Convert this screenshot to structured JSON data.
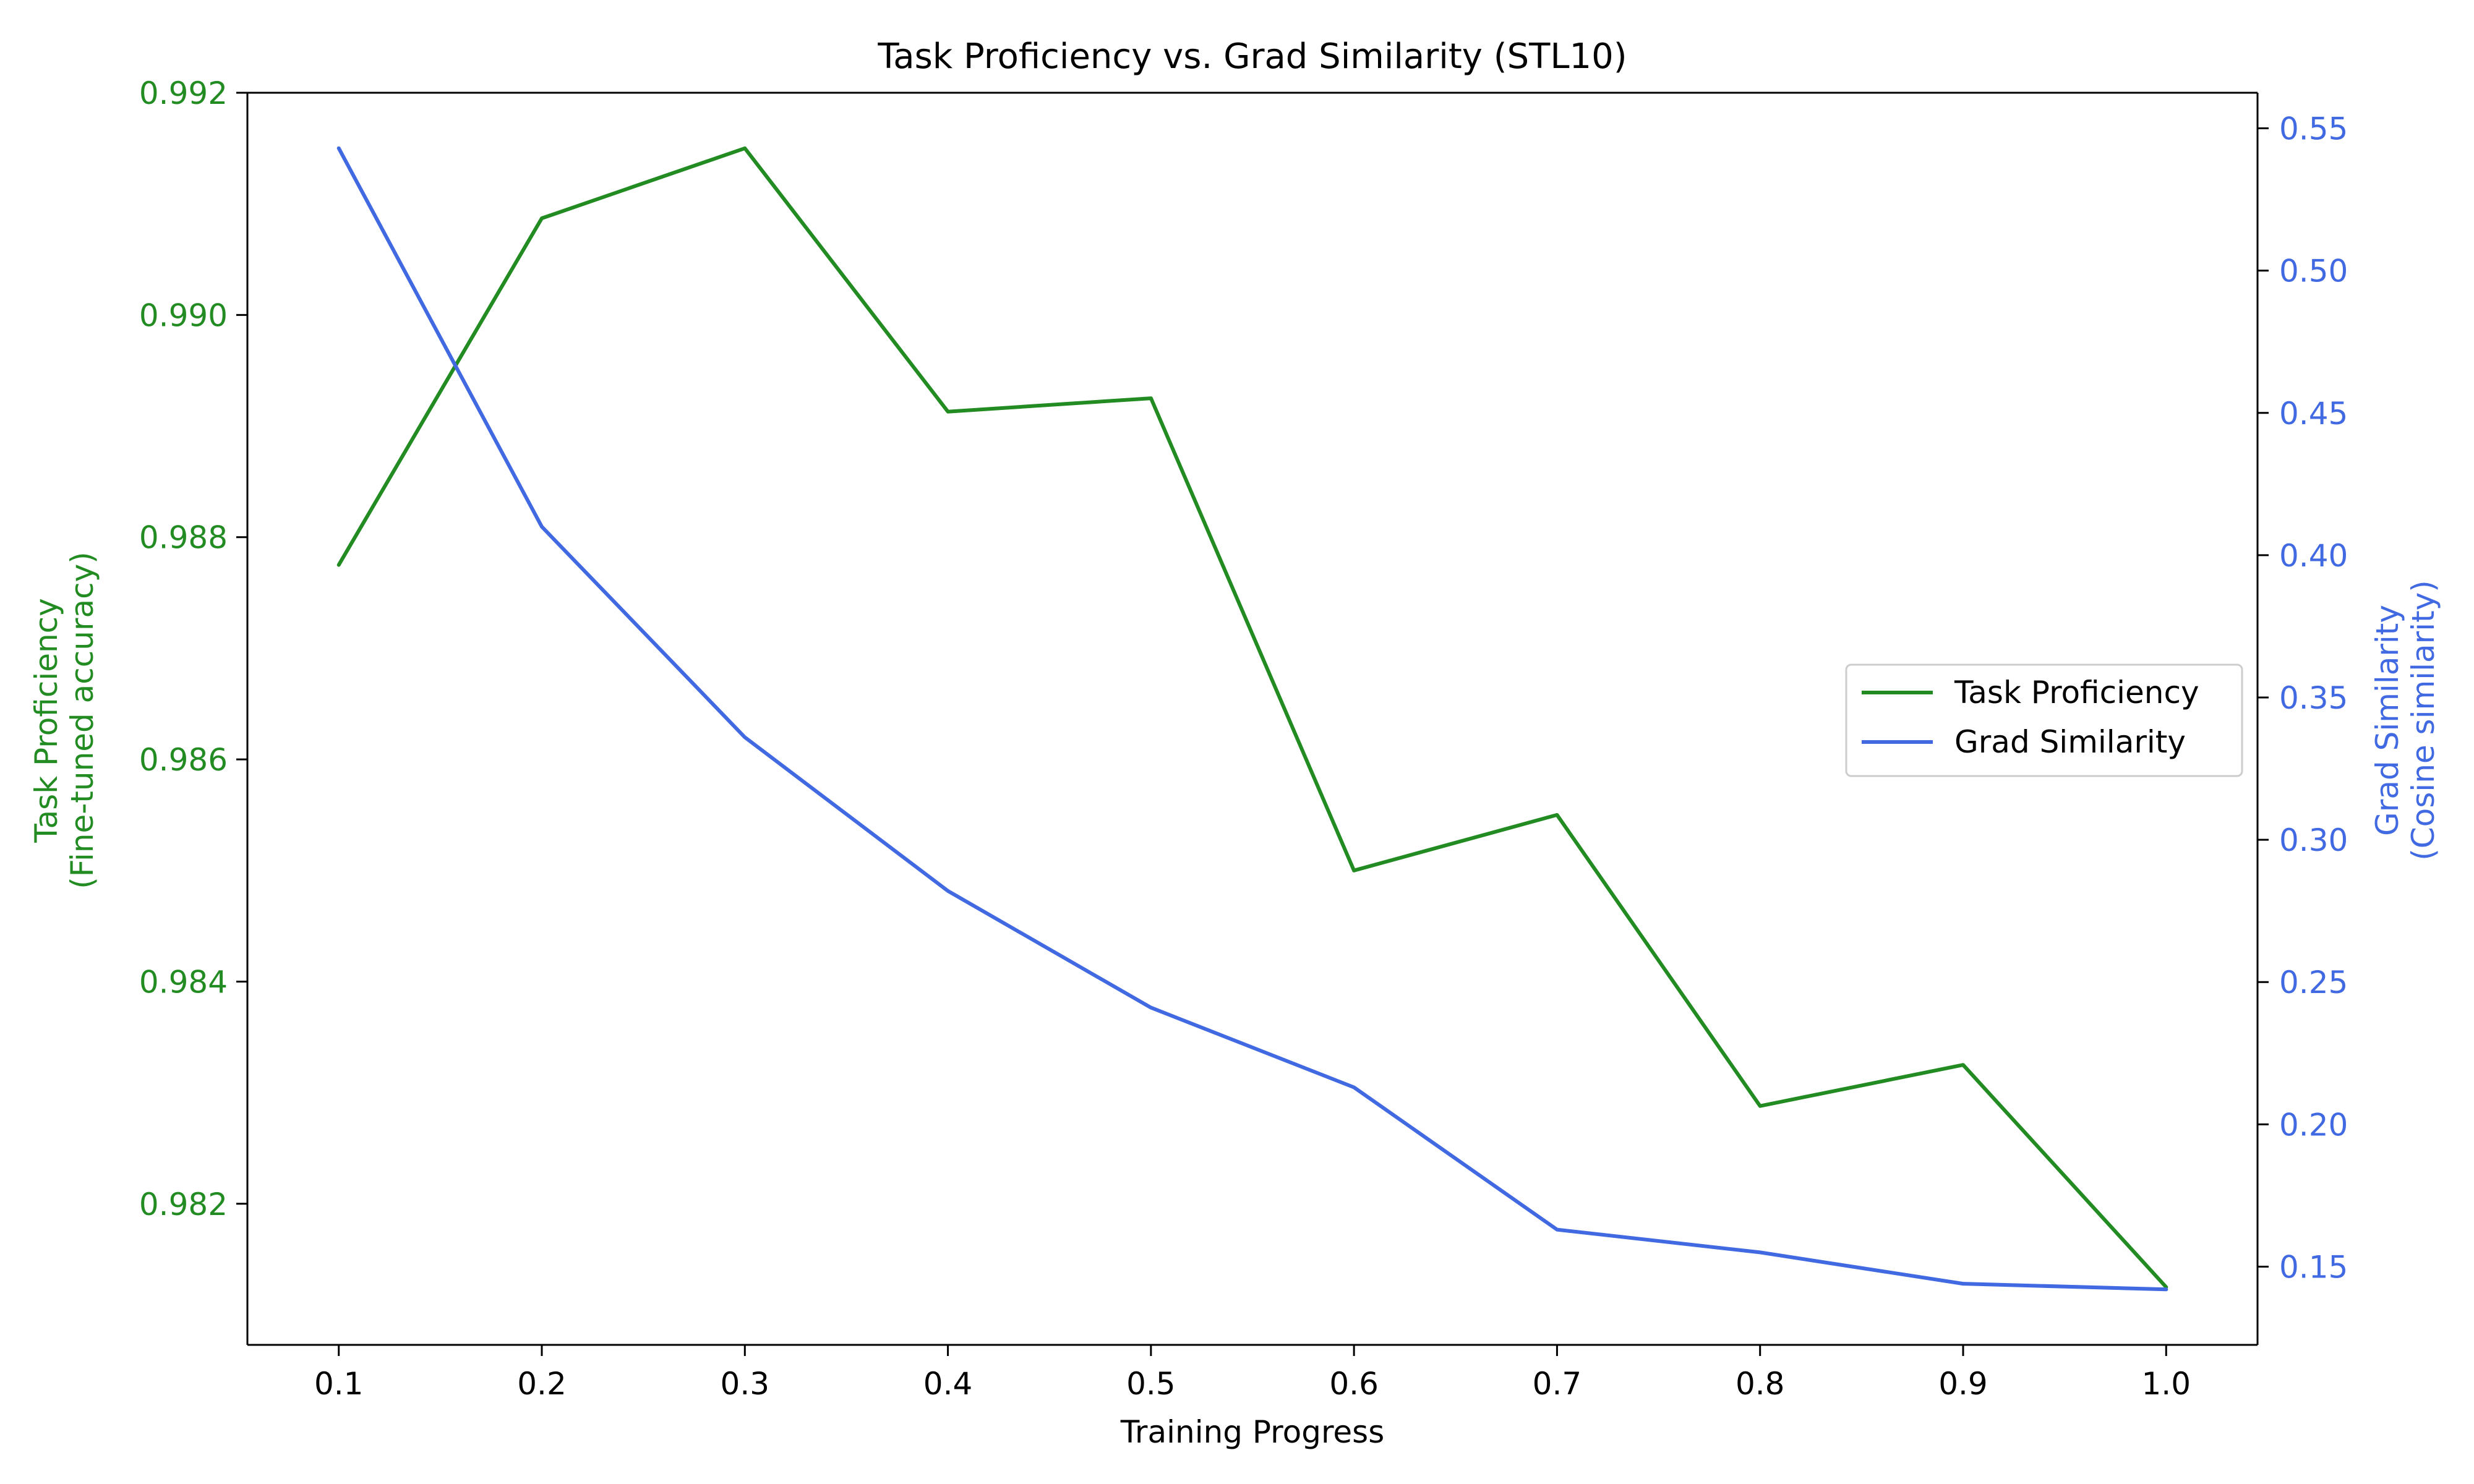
{
  "chart_data": {
    "type": "line",
    "title": "Task Proficiency vs. Grad Similarity (STL10)",
    "xlabel": "Training Progress",
    "ylabel_left": [
      "Task Proficiency",
      "(Fine-tuned accuracy)"
    ],
    "ylabel_right": [
      "Grad Similarity",
      "(Cosine similarity)"
    ],
    "x": [
      0.1,
      0.2,
      0.3,
      0.4,
      0.5,
      0.6,
      0.7,
      0.8,
      0.9,
      1.0
    ],
    "x_ticks": [
      "0.1",
      "0.2",
      "0.3",
      "0.4",
      "0.5",
      "0.6",
      "0.7",
      "0.8",
      "0.9",
      "1.0"
    ],
    "xlim": [
      0.055,
      1.045
    ],
    "left_axis": {
      "ylim": [
        0.98073,
        0.992
      ],
      "ticks": [
        0.982,
        0.984,
        0.986,
        0.988,
        0.99,
        0.992
      ],
      "tick_labels": [
        "0.982",
        "0.984",
        "0.986",
        "0.988",
        "0.990",
        "0.992"
      ]
    },
    "right_axis": {
      "ylim": [
        0.1225,
        0.5625
      ],
      "ticks": [
        0.15,
        0.2,
        0.25,
        0.3,
        0.35,
        0.4,
        0.45,
        0.5,
        0.55
      ],
      "tick_labels": [
        "0.15",
        "0.20",
        "0.25",
        "0.30",
        "0.35",
        "0.40",
        "0.45",
        "0.50",
        "0.55"
      ]
    },
    "series": [
      {
        "name": "Task Proficiency",
        "axis": "left",
        "color": "#228b22",
        "values": [
          0.98775,
          0.99087,
          0.9915,
          0.98913,
          0.98925,
          0.985,
          0.9855,
          0.98288,
          0.98325,
          0.98125
        ]
      },
      {
        "name": "Grad Similarity",
        "axis": "right",
        "color": "#4169e1",
        "values": [
          0.543,
          0.41,
          0.336,
          0.282,
          0.241,
          0.213,
          0.163,
          0.155,
          0.144,
          0.142
        ]
      }
    ],
    "legend": {
      "placement": "center-right"
    },
    "grid": false
  }
}
